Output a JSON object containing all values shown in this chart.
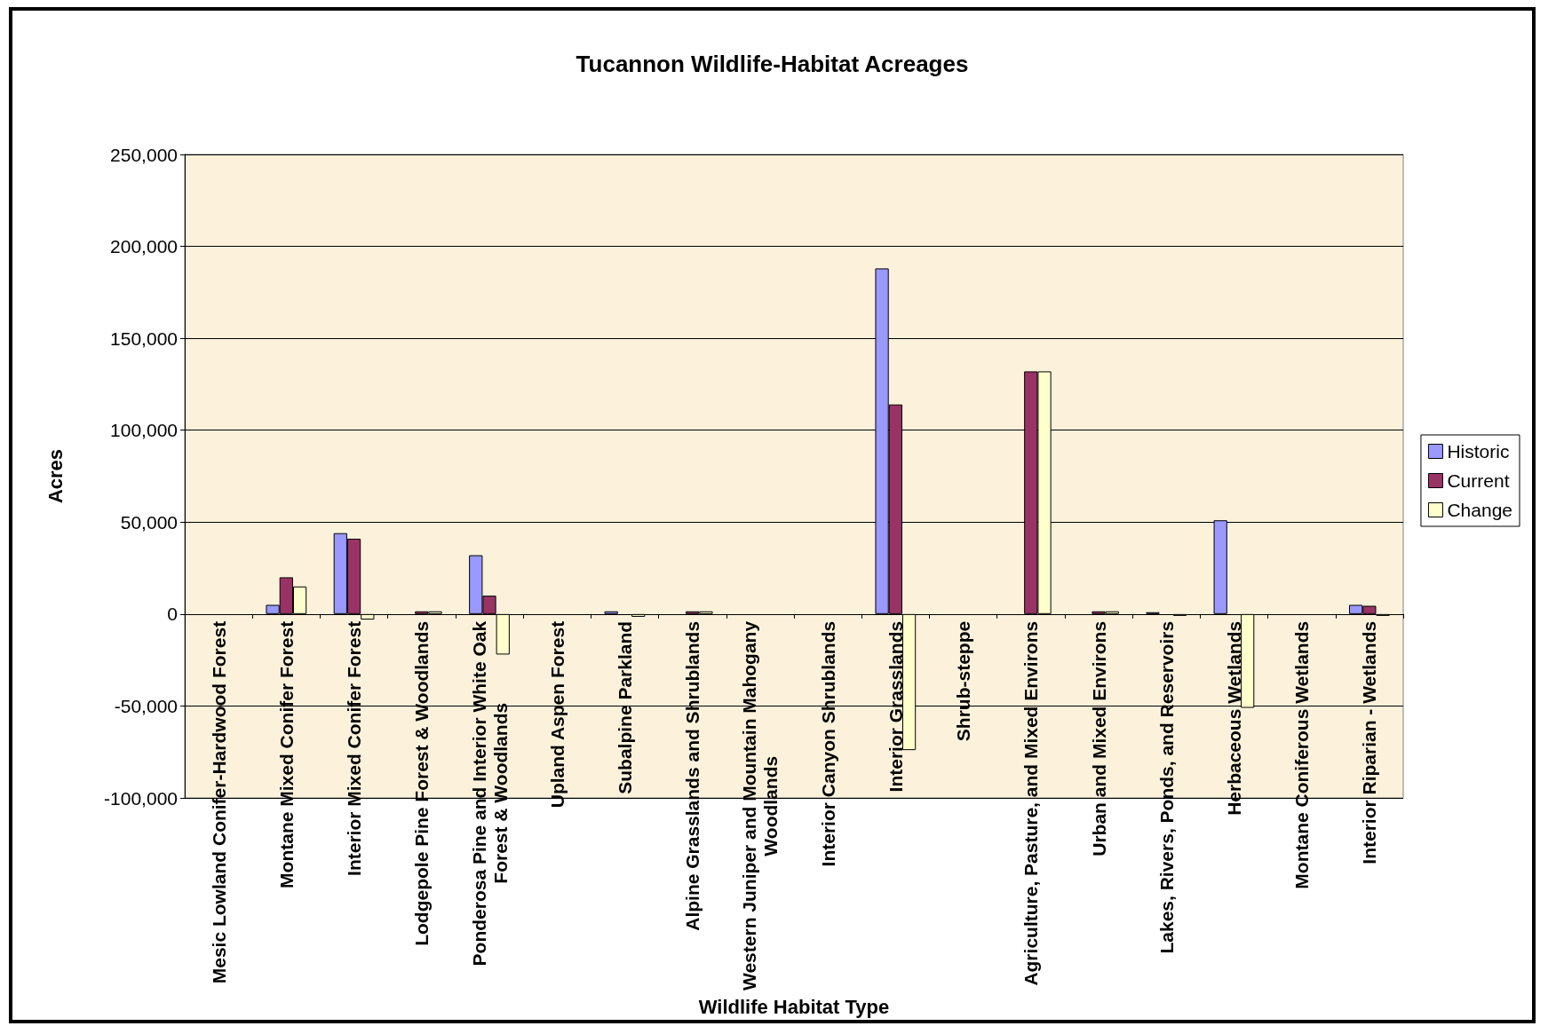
{
  "chart_data": {
    "type": "bar",
    "title": "Tucannon Wildlife-Habitat Acreages",
    "xlabel": "Wildlife Habitat Type",
    "ylabel": "Acres",
    "categories": [
      "Mesic Lowland Conifer-Hardwood Forest",
      "Montane Mixed Conifer Forest",
      "Interior Mixed Conifer Forest",
      "Lodgepole Pine Forest & Woodlands",
      "Ponderosa Pine and Interior White Oak Forest & Woodlands",
      "Upland Aspen Forest",
      "Subalpine Parkland",
      "Alpine Grasslands and Shrublands",
      "Western Juniper and Mountain Mahogany Woodlands",
      "Interior Canyon Shrublands",
      "Interior Grasslands",
      "Shrub-steppe",
      "Agriculture, Pasture, and Mixed Environs",
      "Urban and Mixed Environs",
      "Lakes, Rivers, Ponds, and Reservoirs",
      "Herbaceous Wetlands",
      "Montane Coniferous Wetlands",
      "Interior Riparian - Wetlands"
    ],
    "series": [
      {
        "name": "Historic",
        "color": "#9999ff",
        "values": [
          null,
          5000,
          44000,
          null,
          32000,
          null,
          1500,
          null,
          null,
          null,
          188000,
          null,
          null,
          null,
          1000,
          51000,
          null,
          5000
        ]
      },
      {
        "name": "Current",
        "color": "#993366",
        "values": [
          null,
          20000,
          41000,
          1500,
          10000,
          null,
          null,
          1500,
          null,
          null,
          114000,
          null,
          132000,
          1500,
          null,
          null,
          null,
          4500
        ]
      },
      {
        "name": "Change",
        "color": "#ffffcc",
        "values": [
          null,
          15000,
          -3000,
          1500,
          -22000,
          null,
          -1500,
          1500,
          null,
          null,
          -74000,
          null,
          132000,
          1500,
          -1000,
          -51000,
          null,
          -1000
        ]
      }
    ],
    "ylim": [
      -100000,
      250000
    ],
    "yticks": [
      {
        "value": -100000,
        "label": "-100,000"
      },
      {
        "value": -50000,
        "label": "-50,000"
      },
      0,
      {
        "value": 50000,
        "label": "50,000"
      },
      {
        "value": 100000,
        "label": "100,000"
      },
      {
        "value": 150000,
        "label": "150,000"
      },
      {
        "value": 200000,
        "label": "200,000"
      },
      {
        "value": 250000,
        "label": "250,000"
      }
    ],
    "grid": "y",
    "legend": "right"
  }
}
